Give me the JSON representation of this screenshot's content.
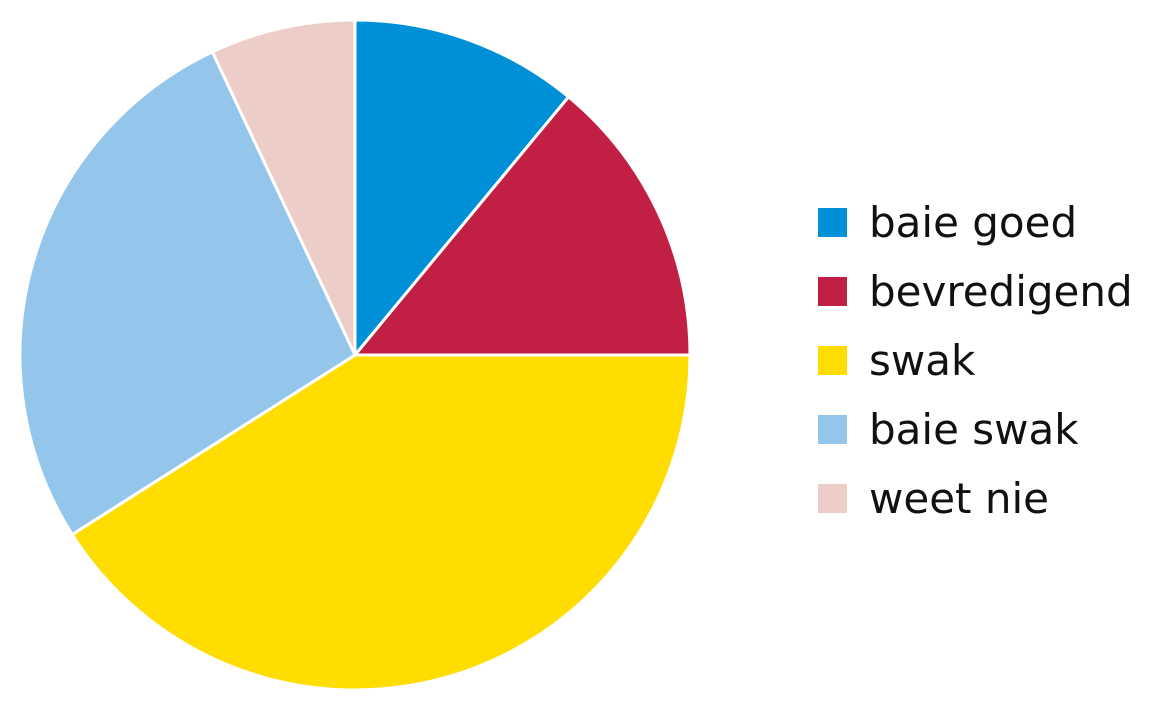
{
  "chart_data": {
    "type": "pie",
    "slices": [
      {
        "label": "baie goed",
        "value": 11,
        "color": "#0090d7"
      },
      {
        "label": "bevredigend",
        "value": 14,
        "color": "#c21f45"
      },
      {
        "label": "swak",
        "value": 41,
        "color": "#ffdd00"
      },
      {
        "label": "baie swak",
        "value": 27,
        "color": "#94c5eb"
      },
      {
        "label": "weet nie",
        "value": 7,
        "color": "#edcdc8"
      }
    ],
    "start_position": "top",
    "direction": "clockwise",
    "legend_position": "right"
  }
}
